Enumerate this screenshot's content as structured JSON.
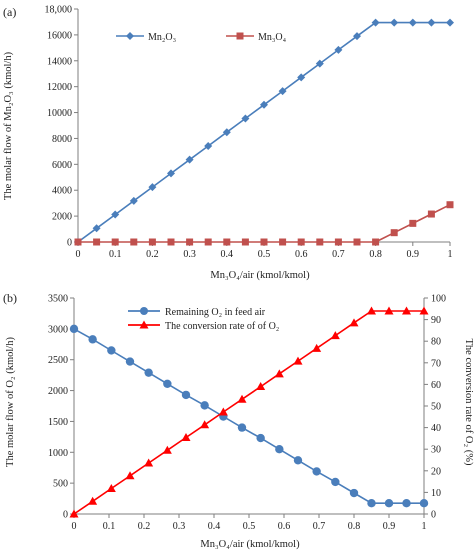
{
  "chart_data": [
    {
      "panel_label": "(a)",
      "type": "line",
      "xlabel": "Mn₃O₄/air (kmol/kmol)",
      "ylabel": "The molar flow of Mn₂O₃ (kmol/h)",
      "xlim": [
        0,
        1
      ],
      "ylim": [
        0,
        18000
      ],
      "x_ticks": [
        "0",
        "0.1",
        "0.2",
        "0.3",
        "0.4",
        "0.5",
        "0.6",
        "0.7",
        "0.8",
        "0.9",
        "1"
      ],
      "y_ticks": [
        "0",
        "2000",
        "4000",
        "6000",
        "8000",
        "10000",
        "12000",
        "14000",
        "16000",
        "18,000"
      ],
      "grid": false,
      "legend_position": "top",
      "x": [
        0,
        0.05,
        0.1,
        0.15,
        0.2,
        0.25,
        0.3,
        0.35,
        0.4,
        0.45,
        0.5,
        0.55,
        0.6,
        0.65,
        0.7,
        0.75,
        0.8,
        0.85,
        0.9,
        0.95,
        1.0
      ],
      "series": [
        {
          "name": "Mn₂O₃",
          "color": "#4a7ebb",
          "marker": "diamond",
          "values": [
            0,
            1060,
            2120,
            3180,
            4240,
            5300,
            6360,
            7420,
            8480,
            9540,
            10600,
            11660,
            12720,
            13780,
            14840,
            15900,
            16950,
            16950,
            16950,
            16950,
            16950
          ]
        },
        {
          "name": "Mn₃O₄",
          "color": "#c0504d",
          "marker": "square",
          "values": [
            0,
            0,
            0,
            0,
            0,
            0,
            0,
            0,
            0,
            0,
            0,
            0,
            0,
            0,
            0,
            0,
            0,
            720,
            1440,
            2160,
            2880
          ]
        }
      ]
    },
    {
      "panel_label": "(b)",
      "type": "line",
      "xlabel": "Mn₃O₄/air (kmol/kmol)",
      "ylabel": "The molar flow of O₂ (kmol/h)",
      "ylabel_right": "The conversion rate of O₂ (%)",
      "xlim": [
        0,
        1
      ],
      "ylim": [
        0,
        3500
      ],
      "ylim_right": [
        0,
        100
      ],
      "x_ticks": [
        "0",
        "0.1",
        "0.2",
        "0.3",
        "0.4",
        "0.5",
        "0.6",
        "0.7",
        "0.8",
        "0.9",
        "1"
      ],
      "y_ticks": [
        "0",
        "500",
        "1000",
        "1500",
        "2000",
        "2500",
        "3000",
        "3500"
      ],
      "y_ticks_right": [
        "0",
        "10",
        "20",
        "30",
        "40",
        "50",
        "60",
        "70",
        "80",
        "90",
        "100"
      ],
      "grid": false,
      "legend_position": "top-center",
      "x": [
        0,
        0.0533,
        0.1067,
        0.16,
        0.2133,
        0.2667,
        0.32,
        0.3733,
        0.4267,
        0.48,
        0.5333,
        0.5867,
        0.64,
        0.6933,
        0.7467,
        0.8,
        0.85,
        0.9,
        0.95,
        1.0
      ],
      "series": [
        {
          "name": "Remaining O₂ in feed air",
          "color": "#4a7ebb",
          "marker": "circle",
          "axis": "left",
          "values": [
            3000,
            2830,
            2650,
            2470,
            2290,
            2110,
            1930,
            1760,
            1580,
            1400,
            1230,
            1050,
            870,
            690,
            520,
            340,
            175,
            175,
            175,
            175
          ]
        },
        {
          "name": "The conversion rate of  of O₂",
          "color": "#ff0000",
          "marker": "triangle",
          "axis": "right",
          "values": [
            0,
            5.9,
            11.8,
            17.7,
            23.6,
            29.5,
            35.4,
            41.3,
            47.2,
            53.1,
            59.0,
            64.9,
            70.8,
            76.7,
            82.6,
            88.5,
            94,
            94,
            94,
            94
          ]
        }
      ]
    }
  ]
}
